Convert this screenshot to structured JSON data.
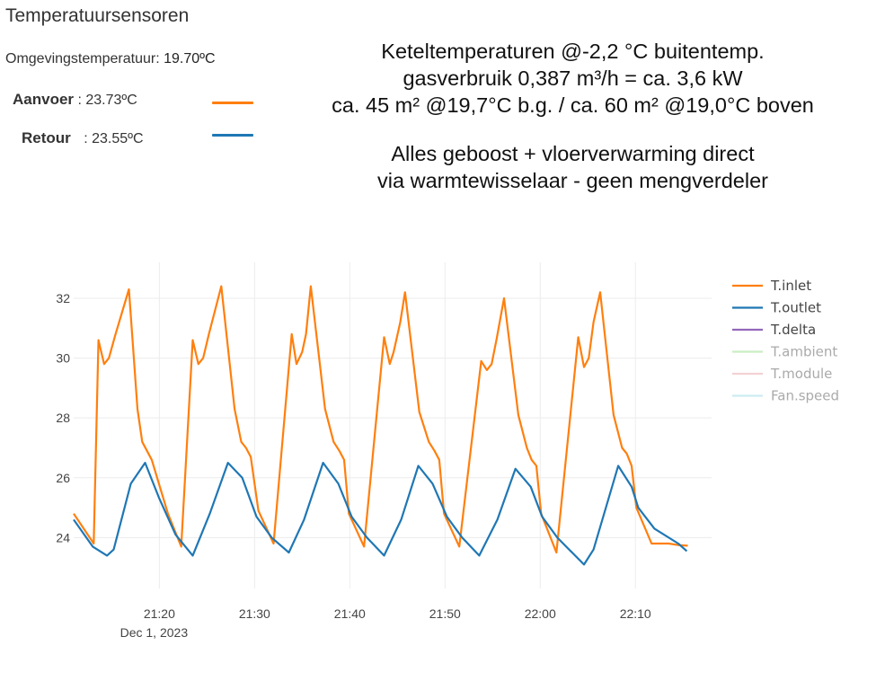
{
  "sensor_panel": {
    "title": "Temperatuursensoren",
    "ambient_label": "Omgevingstemperatuur:",
    "ambient_value": "19.70ºC",
    "supply_label": "Aanvoer",
    "supply_value": ": 23.73ºC",
    "return_label": "Retour",
    "return_value": ": 23.55ºC",
    "supply_color": "#ff7f0e",
    "return_color": "#1f77b4"
  },
  "annotation": {
    "line1": "Keteltemperaturen @-2,2 °C buitentemp.",
    "line2": "gasverbruik 0,387 m³/h = ca. 3,6 kW",
    "line3": "ca. 45 m² @19,7°C b.g. / ca. 60 m²  @19,0°C boven",
    "line4": "Alles geboost + vloerverwarming direct",
    "line5": "via warmtewisselaar - geen mengverdeler"
  },
  "chart_data": {
    "type": "line",
    "title": "",
    "xlabel": "",
    "ylabel": "",
    "x_unit": "minutes after 21:00",
    "xlim": [
      11,
      78
    ],
    "ylim": [
      22.3,
      33.2
    ],
    "grid": true,
    "legend_position": "right",
    "yticks": [
      24,
      26,
      28,
      30,
      32
    ],
    "yticklabels": [
      "24",
      "26",
      "28",
      "30",
      "32"
    ],
    "xticks": [
      20,
      30,
      40,
      50,
      60,
      70
    ],
    "xticklabels": [
      "21:20",
      "21:30",
      "21:40",
      "21:50",
      "22:00",
      "22:10"
    ],
    "date_label": "Dec 1, 2023",
    "series": [
      {
        "name": "T.inlet",
        "color": "#ff7f0e",
        "visible": true,
        "x": [
          11,
          13.1,
          13.6,
          14.2,
          14.7,
          15.4,
          16.8,
          17.7,
          18.2,
          18.7,
          19.2,
          20.9,
          22.3,
          23.5,
          24.1,
          24.6,
          25.2,
          26.5,
          27.9,
          28.6,
          29.1,
          29.6,
          30.4,
          32.0,
          33.9,
          34.4,
          35.0,
          35.4,
          35.9,
          37.4,
          38.3,
          38.9,
          39.4,
          39.9,
          41.5,
          43.6,
          44.2,
          44.6,
          45.3,
          45.8,
          47.3,
          48.3,
          48.9,
          49.4,
          49.9,
          51.5,
          53.8,
          54.4,
          54.9,
          55.4,
          56.2,
          57.7,
          58.6,
          59.1,
          59.6,
          60.1,
          61.7,
          64.0,
          64.6,
          65.1,
          65.6,
          66.3,
          67.7,
          68.6,
          69.1,
          69.6,
          70.1,
          71.7,
          73.5,
          74.5,
          75.5
        ],
        "values": [
          24.8,
          23.8,
          30.6,
          29.8,
          30.0,
          30.8,
          32.3,
          28.3,
          27.2,
          26.9,
          26.6,
          24.8,
          23.7,
          30.6,
          29.8,
          30.0,
          30.8,
          32.4,
          28.3,
          27.2,
          27.0,
          26.7,
          24.9,
          23.8,
          30.8,
          29.8,
          30.2,
          30.8,
          32.4,
          28.3,
          27.2,
          26.9,
          26.6,
          24.8,
          23.7,
          30.7,
          29.8,
          30.2,
          31.2,
          32.2,
          28.2,
          27.2,
          26.9,
          26.6,
          24.8,
          23.7,
          29.9,
          29.6,
          29.8,
          30.6,
          32.0,
          28.1,
          27.0,
          26.6,
          26.4,
          24.8,
          23.5,
          30.7,
          29.7,
          30.0,
          31.2,
          32.2,
          28.1,
          27.0,
          26.8,
          26.4,
          25.0,
          23.8,
          23.8,
          23.75,
          23.73
        ]
      },
      {
        "name": "T.outlet",
        "color": "#1f77b4",
        "visible": true,
        "x": [
          11,
          13,
          14.5,
          15.2,
          17.0,
          18.5,
          20.0,
          21.7,
          23.5,
          25.3,
          27.2,
          28.7,
          30.2,
          31.8,
          33.6,
          35.2,
          37.2,
          38.8,
          40.2,
          41.8,
          43.6,
          45.4,
          47.2,
          48.7,
          50.2,
          51.8,
          53.6,
          55.5,
          57.4,
          59.0,
          60.2,
          61.8,
          64.6,
          65.6,
          68.2,
          69.6,
          70.3,
          72.0,
          74.5,
          75.4
        ],
        "values": [
          24.6,
          23.7,
          23.4,
          23.6,
          25.8,
          26.5,
          25.3,
          24.1,
          23.4,
          24.8,
          26.5,
          26.0,
          24.7,
          24.0,
          23.5,
          24.6,
          26.5,
          25.8,
          24.7,
          24.0,
          23.4,
          24.6,
          26.4,
          25.8,
          24.7,
          24.0,
          23.4,
          24.6,
          26.3,
          25.7,
          24.7,
          24.0,
          23.1,
          23.6,
          26.4,
          25.7,
          25.0,
          24.3,
          23.8,
          23.55
        ]
      },
      {
        "name": "T.delta",
        "color": "#9467bd",
        "visible": true,
        "x": [],
        "values": []
      },
      {
        "name": "T.ambient",
        "color": "#98df8a",
        "visible": false,
        "x": [],
        "values": []
      },
      {
        "name": "T.module",
        "color": "#e8a5a8",
        "visible": false,
        "x": [],
        "values": []
      },
      {
        "name": "Fan.speed",
        "color": "#9edae5",
        "visible": false,
        "x": [],
        "values": []
      }
    ]
  }
}
